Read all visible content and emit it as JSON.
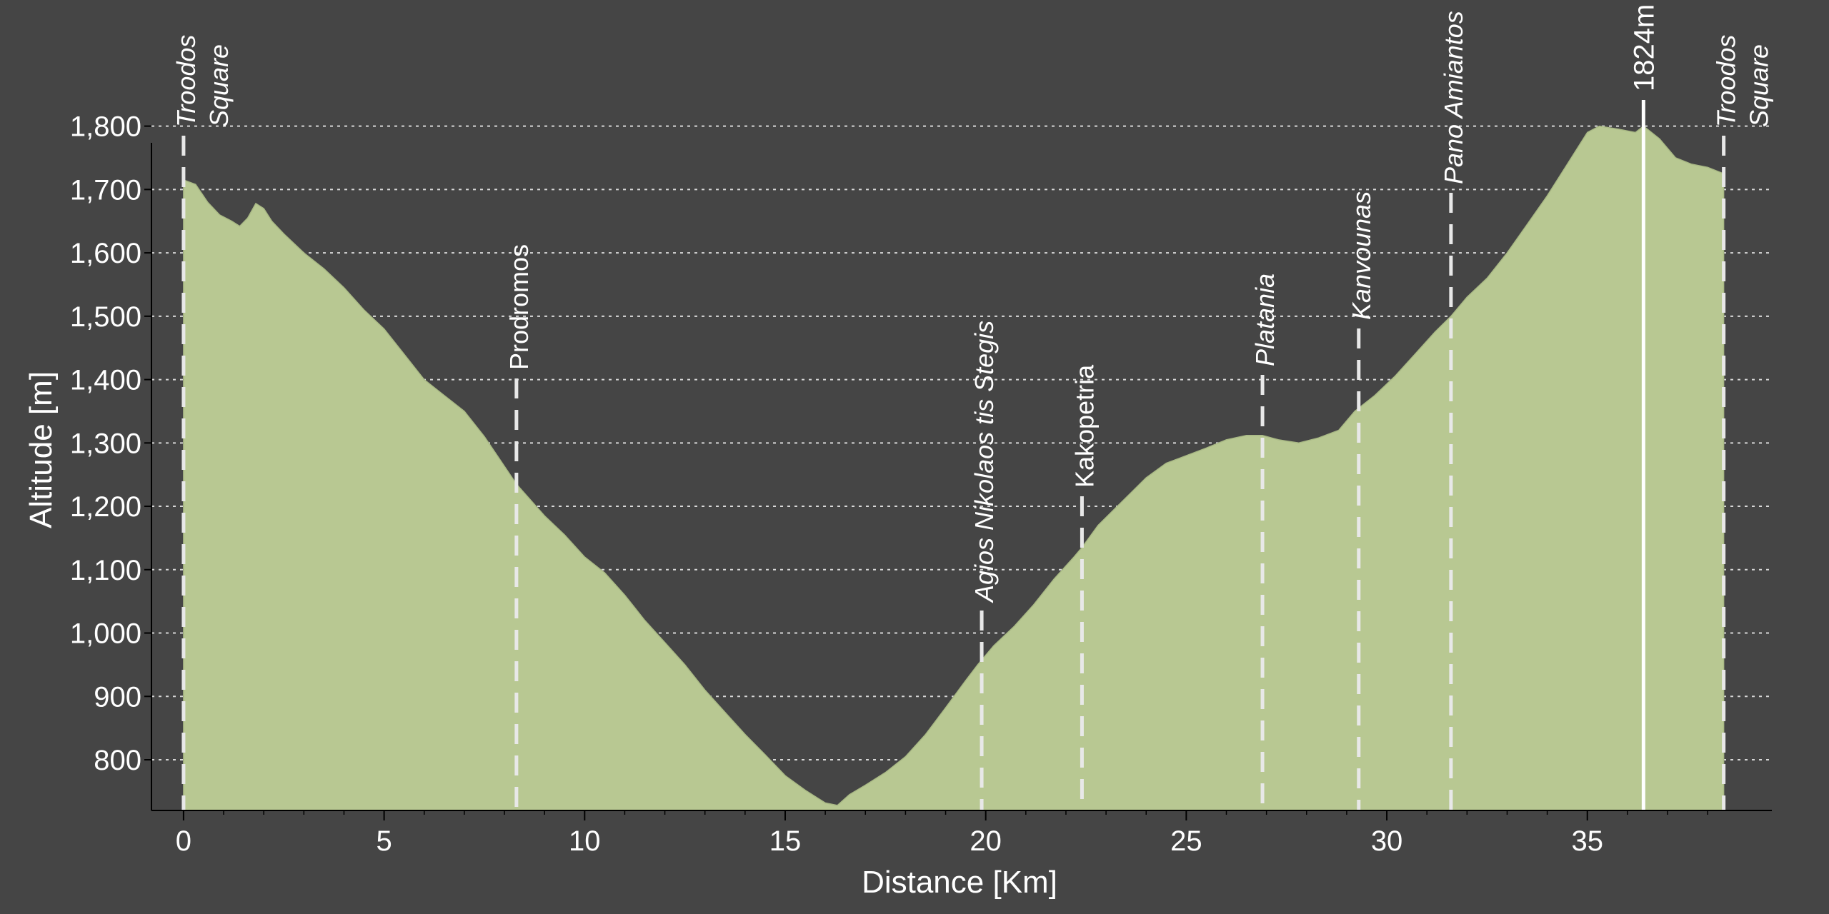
{
  "chart_data": {
    "type": "area",
    "title": "",
    "xlabel": "Distance [Km]",
    "ylabel": "Altitude [m]",
    "xlim": [
      -0.8,
      39.6
    ],
    "ylim": [
      720,
      1830
    ],
    "x_ticks": [
      0,
      5,
      10,
      15,
      20,
      25,
      30,
      35
    ],
    "x_tick_labels": [
      "0",
      "5",
      "10",
      "15",
      "20",
      "25",
      "30",
      "35"
    ],
    "y_ticks": [
      800,
      900,
      1000,
      1100,
      1200,
      1300,
      1400,
      1500,
      1600,
      1700,
      1800
    ],
    "y_tick_labels": [
      "800",
      "900",
      "1,000",
      "1,100",
      "1,200",
      "1,300",
      "1,400",
      "1,500",
      "1,600",
      "1,700",
      "1,800"
    ],
    "grid": {
      "horizontal": true,
      "vertical": false
    },
    "colors": {
      "background": "#454545",
      "fill": "#b8c892",
      "grid": "#d8d8d8",
      "marker": "#e8e8e8",
      "text": "#ffffff"
    },
    "series": [
      {
        "x": [
          0,
          0.3,
          0.6,
          0.9,
          1.2,
          1.4,
          1.6,
          1.8,
          2.0,
          2.2,
          2.5,
          3.0,
          3.5,
          4.0,
          4.5,
          5.0,
          5.5,
          6.0,
          6.5,
          7.0,
          7.5,
          8.3,
          9.0,
          9.5,
          10.0,
          10.5,
          11.0,
          11.5,
          12.0,
          12.5,
          13.0,
          13.5,
          14.0,
          14.5,
          15.0,
          15.5,
          16.0,
          16.3,
          16.6,
          17.0,
          17.5,
          18.0,
          18.5,
          19.0,
          19.5,
          19.8,
          20.2,
          20.7,
          21.2,
          21.7,
          22.2,
          22.4,
          22.8,
          23.2,
          23.6,
          24.0,
          24.5,
          25.0,
          25.5,
          26.0,
          26.5,
          26.9,
          27.3,
          27.8,
          28.3,
          28.8,
          29.2,
          29.7,
          30.2,
          30.7,
          31.2,
          31.6,
          32.0,
          32.5,
          33.0,
          33.5,
          34.0,
          34.5,
          35.0,
          35.3,
          35.8,
          36.2,
          36.4,
          36.8,
          37.2,
          37.6,
          38.0,
          38.4
        ],
        "y": [
          1715,
          1708,
          1680,
          1660,
          1650,
          1642,
          1655,
          1678,
          1670,
          1650,
          1630,
          1600,
          1575,
          1545,
          1510,
          1480,
          1440,
          1400,
          1375,
          1350,
          1310,
          1235,
          1185,
          1155,
          1120,
          1095,
          1060,
          1020,
          985,
          950,
          910,
          875,
          840,
          808,
          775,
          752,
          732,
          728,
          745,
          760,
          780,
          805,
          840,
          882,
          925,
          950,
          980,
          1010,
          1045,
          1085,
          1120,
          1135,
          1170,
          1195,
          1220,
          1245,
          1268,
          1280,
          1292,
          1305,
          1312,
          1312,
          1305,
          1300,
          1308,
          1320,
          1350,
          1375,
          1405,
          1440,
          1475,
          1500,
          1530,
          1560,
          1600,
          1645,
          1690,
          1740,
          1790,
          1800,
          1795,
          1790,
          1800,
          1780,
          1750,
          1740,
          1735,
          1725
        ]
      }
    ],
    "markers": [
      {
        "x": 0,
        "label": "Troodos\nSquare",
        "italic": true
      },
      {
        "x": 8.3,
        "label": "Prodromos",
        "italic": false
      },
      {
        "x": 19.9,
        "label": "Agios Nikolaos tis Stegis",
        "italic": true
      },
      {
        "x": 22.4,
        "label": "Kakopetria",
        "italic": false
      },
      {
        "x": 26.9,
        "label": "Platania",
        "italic": true
      },
      {
        "x": 29.3,
        "label": "Kanvounas",
        "italic": true
      },
      {
        "x": 31.6,
        "label": "Pano Amiantos",
        "italic": true
      },
      {
        "x": 38.4,
        "label": "Troodos\nSquare",
        "italic": true
      }
    ],
    "peak": {
      "x": 36.4,
      "label": "1824m"
    }
  }
}
